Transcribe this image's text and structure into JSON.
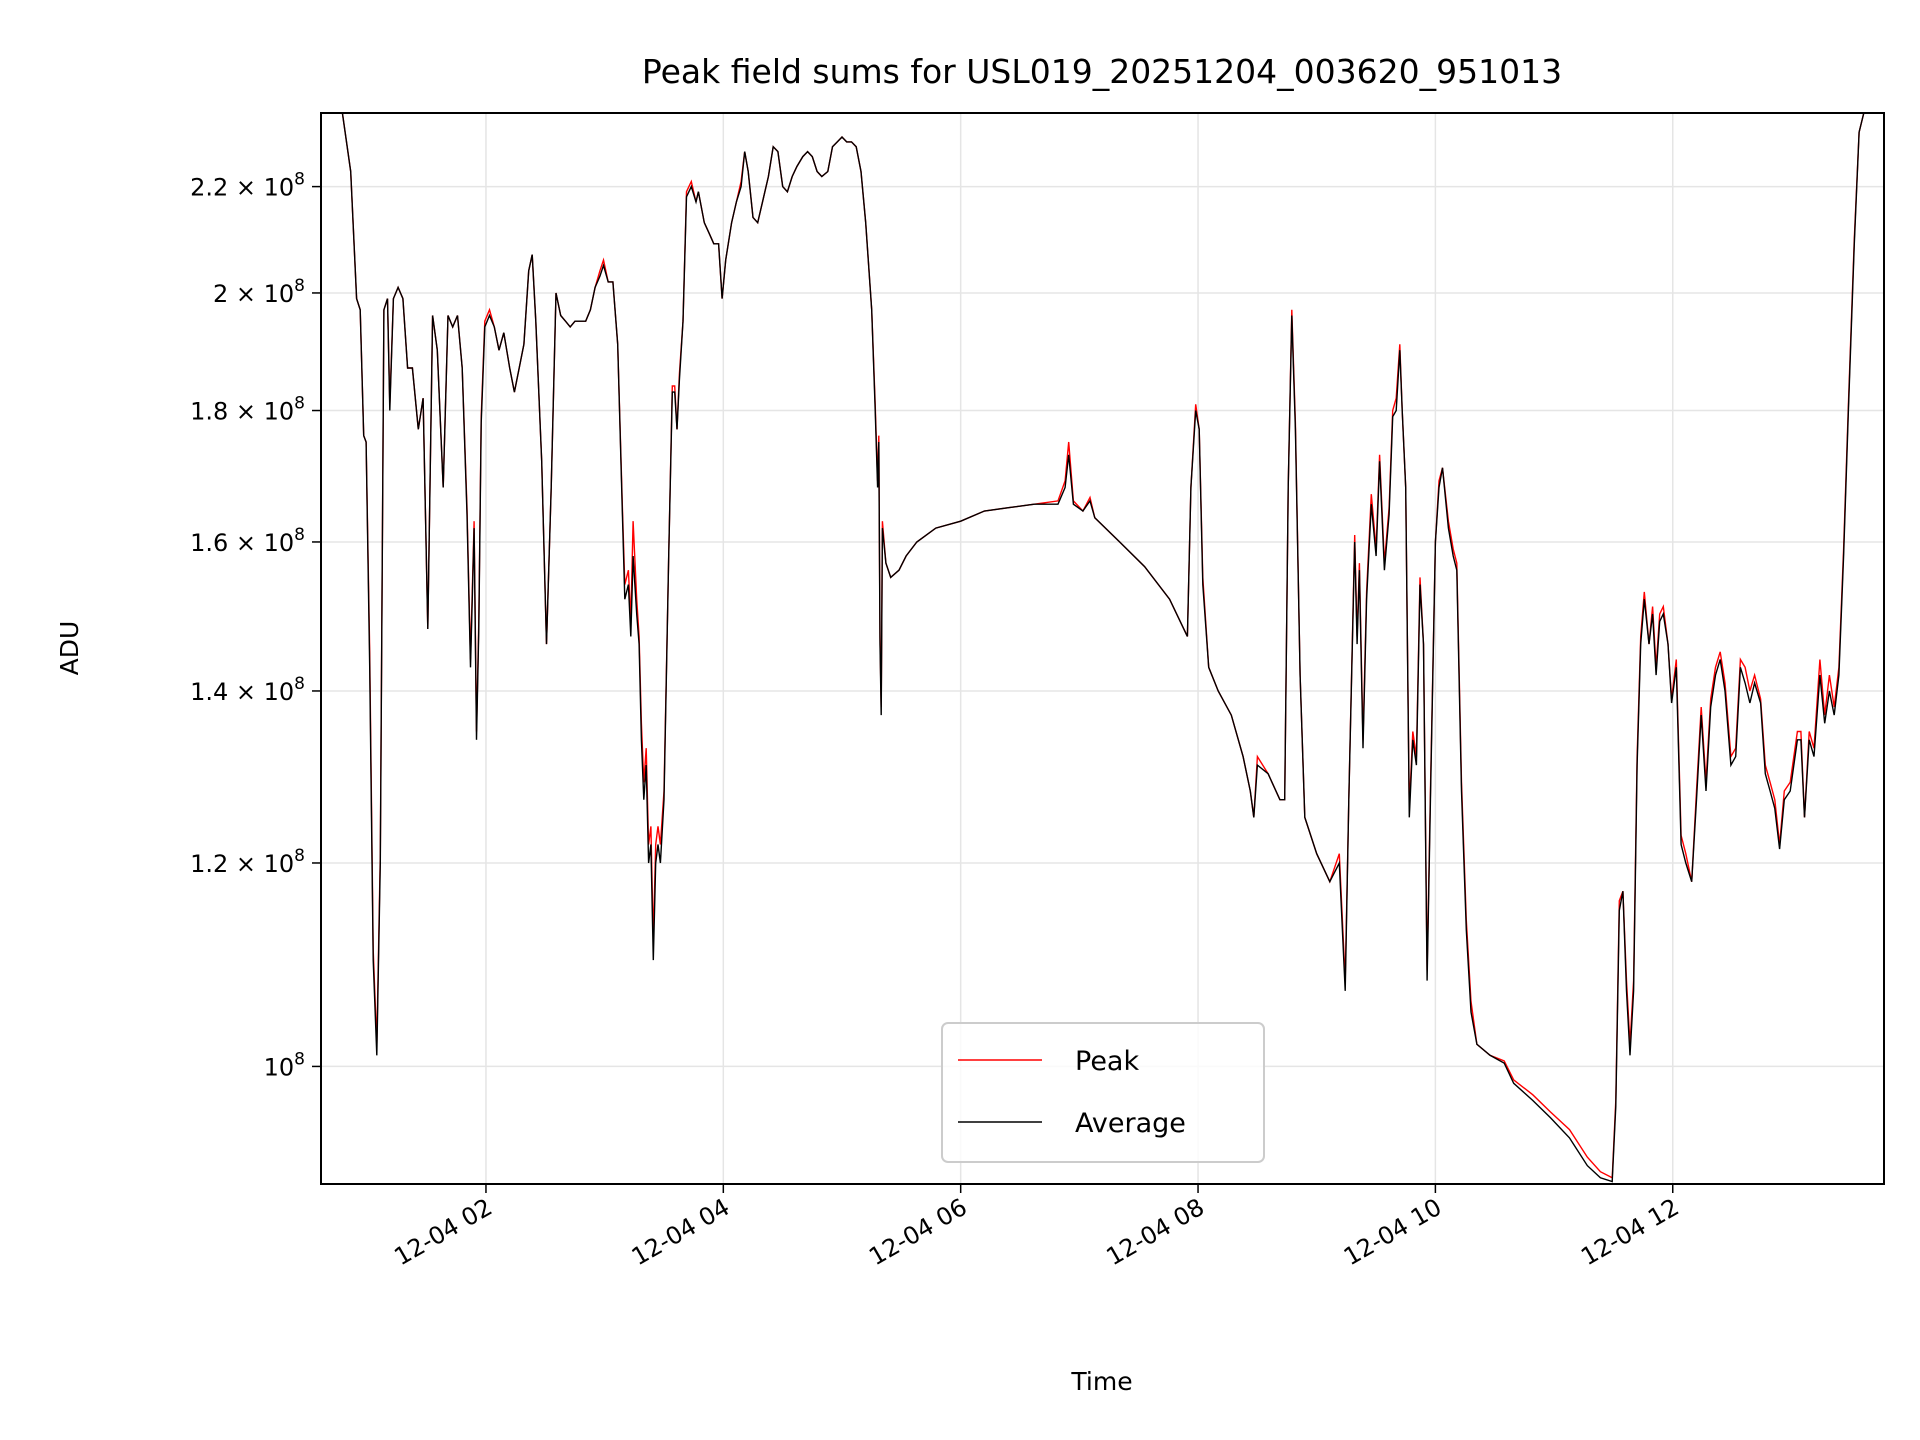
{
  "chart_data": {
    "type": "line",
    "title": "Peak field sums for USL019_20251204_003620_951013",
    "xlabel": "Time",
    "ylabel": "ADU",
    "yscale": "log",
    "x_unit": "hours",
    "y_unit_scale": 100000000,
    "xlim": [
      0.61,
      13.78
    ],
    "ylim": [
      0.9,
      2.35
    ],
    "grid": true,
    "legend": "lower center",
    "xticks": [
      {
        "v": 2,
        "label": "12-04 02"
      },
      {
        "v": 4,
        "label": "12-04 04"
      },
      {
        "v": 6,
        "label": "12-04 06"
      },
      {
        "v": 8,
        "label": "12-04 08"
      },
      {
        "v": 10,
        "label": "12-04 10"
      },
      {
        "v": 12,
        "label": "12-04 12"
      }
    ],
    "yticks": [
      {
        "v": 1.0,
        "mant": "",
        "exp": "8",
        "base": "10"
      },
      {
        "v": 1.2,
        "mant": "1.2",
        "exp": "8",
        "base": "10"
      },
      {
        "v": 1.4,
        "mant": "1.4",
        "exp": "8",
        "base": "10"
      },
      {
        "v": 1.6,
        "mant": "1.6",
        "exp": "8",
        "base": "10"
      },
      {
        "v": 1.8,
        "mant": "1.8",
        "exp": "8",
        "base": "10"
      },
      {
        "v": 2.0,
        "mant": "2",
        "exp": "8",
        "base": "10"
      },
      {
        "v": 2.2,
        "mant": "2.2",
        "exp": "8",
        "base": "10"
      }
    ],
    "x": [
      0.61,
      0.79,
      0.86,
      0.91,
      0.94,
      0.97,
      0.99,
      1.02,
      1.05,
      1.08,
      1.11,
      1.14,
      1.17,
      1.19,
      1.22,
      1.26,
      1.3,
      1.34,
      1.38,
      1.43,
      1.47,
      1.51,
      1.55,
      1.59,
      1.64,
      1.68,
      1.72,
      1.76,
      1.8,
      1.84,
      1.87,
      1.9,
      1.92,
      1.94,
      1.96,
      1.99,
      2.03,
      2.07,
      2.11,
      2.15,
      2.2,
      2.24,
      2.28,
      2.32,
      2.36,
      2.39,
      2.42,
      2.47,
      2.51,
      2.55,
      2.59,
      2.63,
      2.67,
      2.71,
      2.75,
      2.79,
      2.84,
      2.88,
      2.92,
      2.96,
      2.99,
      3.03,
      3.07,
      3.11,
      3.15,
      3.17,
      3.2,
      3.22,
      3.24,
      3.27,
      3.29,
      3.31,
      3.33,
      3.35,
      3.37,
      3.39,
      3.41,
      3.43,
      3.45,
      3.47,
      3.5,
      3.54,
      3.57,
      3.59,
      3.61,
      3.63,
      3.66,
      3.69,
      3.73,
      3.77,
      3.79,
      3.84,
      3.88,
      3.92,
      3.96,
      3.99,
      4.02,
      4.07,
      4.11,
      4.15,
      4.18,
      4.21,
      4.25,
      4.29,
      4.34,
      4.38,
      4.42,
      4.46,
      4.5,
      4.54,
      4.58,
      4.62,
      4.67,
      4.71,
      4.75,
      4.79,
      4.83,
      4.88,
      4.92,
      4.96,
      5.0,
      5.04,
      5.08,
      5.12,
      5.16,
      5.2,
      5.25,
      5.28,
      5.3,
      5.31,
      5.32,
      5.33,
      5.34,
      5.37,
      5.41,
      5.48,
      5.54,
      5.63,
      5.79,
      6.0,
      6.2,
      6.41,
      6.62,
      6.82,
      6.88,
      6.91,
      6.95,
      7.03,
      7.09,
      7.13,
      7.34,
      7.55,
      7.76,
      7.91,
      7.94,
      7.98,
      8.01,
      8.04,
      8.09,
      8.17,
      8.28,
      8.38,
      8.44,
      8.47,
      8.5,
      8.59,
      8.69,
      8.73,
      8.76,
      8.79,
      8.82,
      8.86,
      8.9,
      9.0,
      9.11,
      9.19,
      9.24,
      9.27,
      9.32,
      9.34,
      9.36,
      9.39,
      9.42,
      9.46,
      9.5,
      9.53,
      9.57,
      9.61,
      9.64,
      9.67,
      9.7,
      9.72,
      9.75,
      9.78,
      9.81,
      9.84,
      9.87,
      9.9,
      9.93,
      9.96,
      10.0,
      10.03,
      10.06,
      10.11,
      10.15,
      10.18,
      10.22,
      10.26,
      10.3,
      10.35,
      10.46,
      10.58,
      10.66,
      10.82,
      10.97,
      11.13,
      11.28,
      11.39,
      11.49,
      11.52,
      11.55,
      11.58,
      11.61,
      11.64,
      11.67,
      11.7,
      11.73,
      11.76,
      11.8,
      11.83,
      11.86,
      11.89,
      11.92,
      11.96,
      11.99,
      12.03,
      12.07,
      12.11,
      12.16,
      12.2,
      12.24,
      12.28,
      12.32,
      12.36,
      12.4,
      12.44,
      12.49,
      12.53,
      12.57,
      12.61,
      12.65,
      12.69,
      12.74,
      12.78,
      12.82,
      12.86,
      12.9,
      12.94,
      12.99,
      13.05,
      13.08,
      13.11,
      13.15,
      13.19,
      13.24,
      13.28,
      13.32,
      13.36,
      13.4,
      13.44,
      13.48,
      13.53,
      13.57,
      13.61,
      13.78
    ],
    "series": [
      {
        "name": "Peak",
        "color": "#ff0000",
        "values": [
          2.35,
          2.35,
          2.23,
          1.99,
          1.97,
          1.76,
          1.75,
          1.45,
          1.11,
          1.02,
          1.21,
          1.97,
          1.99,
          1.81,
          1.99,
          2.01,
          1.99,
          1.87,
          1.87,
          1.77,
          1.82,
          1.48,
          1.96,
          1.9,
          1.68,
          1.96,
          1.94,
          1.96,
          1.87,
          1.65,
          1.44,
          1.63,
          1.35,
          1.49,
          1.79,
          1.95,
          1.97,
          1.94,
          1.9,
          1.93,
          1.87,
          1.83,
          1.87,
          1.91,
          2.04,
          2.07,
          1.95,
          1.72,
          1.46,
          1.68,
          2.0,
          1.96,
          1.95,
          1.94,
          1.95,
          1.95,
          1.95,
          1.97,
          2.01,
          2.04,
          2.06,
          2.02,
          2.02,
          1.91,
          1.65,
          1.54,
          1.56,
          1.49,
          1.63,
          1.52,
          1.47,
          1.36,
          1.29,
          1.33,
          1.22,
          1.24,
          1.12,
          1.22,
          1.24,
          1.22,
          1.28,
          1.58,
          1.84,
          1.84,
          1.77,
          1.86,
          1.95,
          2.19,
          2.21,
          2.17,
          2.19,
          2.13,
          2.11,
          2.09,
          2.09,
          1.99,
          2.06,
          2.13,
          2.17,
          2.21,
          2.27,
          2.23,
          2.14,
          2.13,
          2.18,
          2.22,
          2.28,
          2.27,
          2.2,
          2.19,
          2.22,
          2.24,
          2.26,
          2.27,
          2.26,
          2.23,
          2.22,
          2.23,
          2.28,
          2.29,
          2.3,
          2.29,
          2.29,
          2.28,
          2.23,
          2.13,
          1.97,
          1.81,
          1.69,
          1.76,
          1.47,
          1.38,
          1.63,
          1.57,
          1.55,
          1.56,
          1.58,
          1.6,
          1.62,
          1.63,
          1.645,
          1.65,
          1.655,
          1.66,
          1.69,
          1.75,
          1.66,
          1.645,
          1.665,
          1.635,
          1.6,
          1.565,
          1.52,
          1.47,
          1.68,
          1.81,
          1.77,
          1.55,
          1.43,
          1.4,
          1.37,
          1.32,
          1.28,
          1.25,
          1.32,
          1.3,
          1.27,
          1.27,
          1.68,
          1.97,
          1.78,
          1.42,
          1.25,
          1.21,
          1.18,
          1.21,
          1.08,
          1.27,
          1.61,
          1.47,
          1.57,
          1.34,
          1.53,
          1.67,
          1.59,
          1.73,
          1.57,
          1.65,
          1.8,
          1.82,
          1.91,
          1.8,
          1.68,
          1.26,
          1.35,
          1.32,
          1.55,
          1.46,
          1.09,
          1.29,
          1.6,
          1.69,
          1.71,
          1.63,
          1.59,
          1.57,
          1.29,
          1.14,
          1.06,
          1.02,
          1.01,
          1.005,
          0.988,
          0.975,
          0.96,
          0.945,
          0.922,
          0.91,
          0.905,
          0.97,
          1.16,
          1.17,
          1.08,
          1.02,
          1.08,
          1.32,
          1.47,
          1.53,
          1.46,
          1.51,
          1.43,
          1.5,
          1.51,
          1.46,
          1.39,
          1.44,
          1.23,
          1.21,
          1.18,
          1.28,
          1.38,
          1.29,
          1.39,
          1.43,
          1.45,
          1.41,
          1.32,
          1.33,
          1.44,
          1.43,
          1.4,
          1.42,
          1.39,
          1.31,
          1.29,
          1.27,
          1.22,
          1.28,
          1.29,
          1.35,
          1.35,
          1.25,
          1.35,
          1.33,
          1.44,
          1.37,
          1.42,
          1.38,
          1.43,
          1.59,
          1.81,
          2.1,
          2.31,
          2.35,
          2.35
        ]
      },
      {
        "name": "Average",
        "color": "#000000",
        "values": [
          2.35,
          2.35,
          2.23,
          1.99,
          1.97,
          1.76,
          1.75,
          1.43,
          1.1,
          1.01,
          1.2,
          1.97,
          1.99,
          1.8,
          1.99,
          2.01,
          1.99,
          1.87,
          1.87,
          1.77,
          1.82,
          1.48,
          1.96,
          1.9,
          1.68,
          1.96,
          1.94,
          1.96,
          1.87,
          1.64,
          1.43,
          1.62,
          1.34,
          1.48,
          1.78,
          1.94,
          1.96,
          1.94,
          1.9,
          1.93,
          1.87,
          1.83,
          1.87,
          1.91,
          2.04,
          2.07,
          1.95,
          1.72,
          1.46,
          1.68,
          2.0,
          1.96,
          1.95,
          1.94,
          1.95,
          1.95,
          1.95,
          1.97,
          2.01,
          2.03,
          2.05,
          2.02,
          2.02,
          1.91,
          1.64,
          1.52,
          1.54,
          1.47,
          1.58,
          1.5,
          1.46,
          1.34,
          1.27,
          1.31,
          1.2,
          1.22,
          1.1,
          1.2,
          1.22,
          1.2,
          1.27,
          1.58,
          1.83,
          1.83,
          1.77,
          1.85,
          1.95,
          2.18,
          2.2,
          2.17,
          2.19,
          2.13,
          2.11,
          2.09,
          2.09,
          1.99,
          2.06,
          2.13,
          2.17,
          2.2,
          2.27,
          2.23,
          2.14,
          2.13,
          2.18,
          2.22,
          2.28,
          2.27,
          2.2,
          2.19,
          2.22,
          2.24,
          2.26,
          2.27,
          2.26,
          2.23,
          2.22,
          2.23,
          2.28,
          2.29,
          2.3,
          2.29,
          2.29,
          2.28,
          2.23,
          2.13,
          1.97,
          1.8,
          1.68,
          1.75,
          1.46,
          1.37,
          1.62,
          1.57,
          1.55,
          1.56,
          1.58,
          1.6,
          1.62,
          1.63,
          1.645,
          1.65,
          1.655,
          1.655,
          1.68,
          1.73,
          1.655,
          1.645,
          1.66,
          1.635,
          1.6,
          1.565,
          1.52,
          1.47,
          1.68,
          1.8,
          1.77,
          1.54,
          1.43,
          1.4,
          1.37,
          1.32,
          1.28,
          1.25,
          1.31,
          1.3,
          1.27,
          1.27,
          1.68,
          1.96,
          1.77,
          1.42,
          1.25,
          1.21,
          1.18,
          1.2,
          1.07,
          1.27,
          1.6,
          1.46,
          1.56,
          1.33,
          1.52,
          1.655,
          1.58,
          1.72,
          1.56,
          1.64,
          1.79,
          1.8,
          1.9,
          1.8,
          1.68,
          1.25,
          1.34,
          1.31,
          1.54,
          1.46,
          1.08,
          1.28,
          1.6,
          1.68,
          1.71,
          1.62,
          1.58,
          1.56,
          1.28,
          1.13,
          1.05,
          1.02,
          1.01,
          1.003,
          0.985,
          0.97,
          0.955,
          0.938,
          0.915,
          0.905,
          0.902,
          0.965,
          1.15,
          1.17,
          1.07,
          1.01,
          1.07,
          1.31,
          1.46,
          1.52,
          1.46,
          1.5,
          1.42,
          1.49,
          1.5,
          1.46,
          1.385,
          1.43,
          1.22,
          1.2,
          1.18,
          1.27,
          1.37,
          1.28,
          1.38,
          1.42,
          1.44,
          1.4,
          1.31,
          1.32,
          1.43,
          1.41,
          1.385,
          1.41,
          1.385,
          1.3,
          1.28,
          1.26,
          1.215,
          1.27,
          1.28,
          1.34,
          1.34,
          1.25,
          1.34,
          1.32,
          1.42,
          1.36,
          1.4,
          1.37,
          1.42,
          1.58,
          1.8,
          2.09,
          2.31,
          2.35,
          2.35
        ]
      }
    ]
  }
}
